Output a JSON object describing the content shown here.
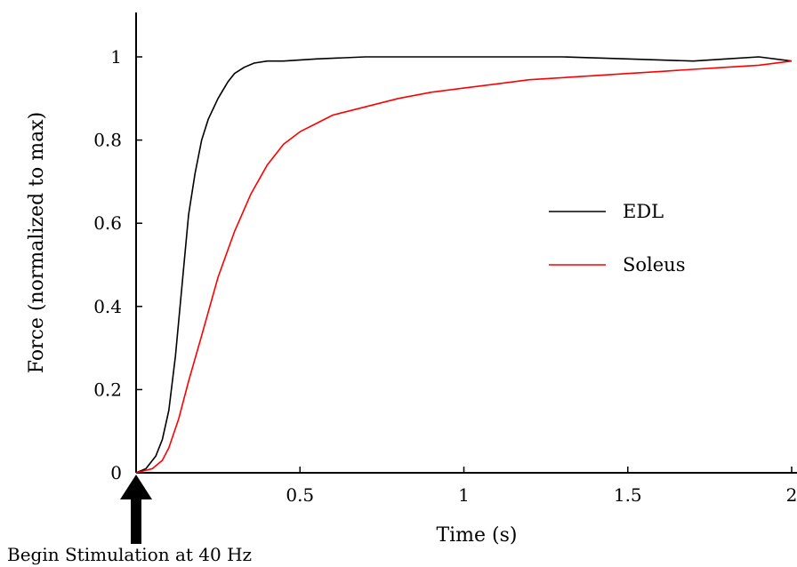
{
  "chart_data": {
    "type": "line",
    "title": "",
    "xlabel": "Time (s)",
    "ylabel": "Force (normalized to max)",
    "xlim": [
      0,
      2
    ],
    "ylim": [
      0,
      1.1
    ],
    "x_ticks": [
      0.5,
      1,
      1.5,
      2
    ],
    "x_tick_labels": [
      "0.5",
      "1",
      "1.5",
      "2"
    ],
    "y_ticks": [
      0,
      0.2,
      0.4,
      0.6,
      0.8,
      1
    ],
    "y_tick_labels": [
      "0",
      "0.2",
      "0.4",
      "0.6",
      "0.8",
      "1"
    ],
    "grid": false,
    "legend_position": "right",
    "series": [
      {
        "name": "EDL",
        "color": "#000000",
        "x": [
          0,
          0.03,
          0.06,
          0.08,
          0.1,
          0.12,
          0.14,
          0.16,
          0.18,
          0.2,
          0.22,
          0.25,
          0.28,
          0.3,
          0.33,
          0.36,
          0.4,
          0.45,
          0.55,
          0.7,
          0.9,
          1.1,
          1.3,
          1.5,
          1.7,
          1.8,
          1.9,
          2
        ],
        "y": [
          0,
          0.01,
          0.04,
          0.08,
          0.15,
          0.28,
          0.45,
          0.62,
          0.72,
          0.8,
          0.85,
          0.9,
          0.94,
          0.96,
          0.975,
          0.985,
          0.99,
          0.99,
          0.995,
          1,
          1,
          1,
          1,
          0.995,
          0.99,
          0.995,
          1,
          0.99
        ]
      },
      {
        "name": "Soleus",
        "color": "#ff0000",
        "x": [
          0,
          0.05,
          0.08,
          0.1,
          0.13,
          0.16,
          0.2,
          0.25,
          0.3,
          0.35,
          0.4,
          0.45,
          0.5,
          0.55,
          0.6,
          0.7,
          0.8,
          0.9,
          1,
          1.1,
          1.2,
          1.3,
          1.4,
          1.5,
          1.6,
          1.7,
          1.8,
          1.9,
          2
        ],
        "y": [
          0,
          0.01,
          0.03,
          0.06,
          0.13,
          0.22,
          0.33,
          0.47,
          0.58,
          0.67,
          0.74,
          0.79,
          0.82,
          0.84,
          0.86,
          0.88,
          0.9,
          0.915,
          0.925,
          0.935,
          0.945,
          0.95,
          0.955,
          0.96,
          0.965,
          0.97,
          0.975,
          0.98,
          0.99
        ]
      }
    ],
    "annotation": "Begin Stimulation at 40 Hz"
  }
}
